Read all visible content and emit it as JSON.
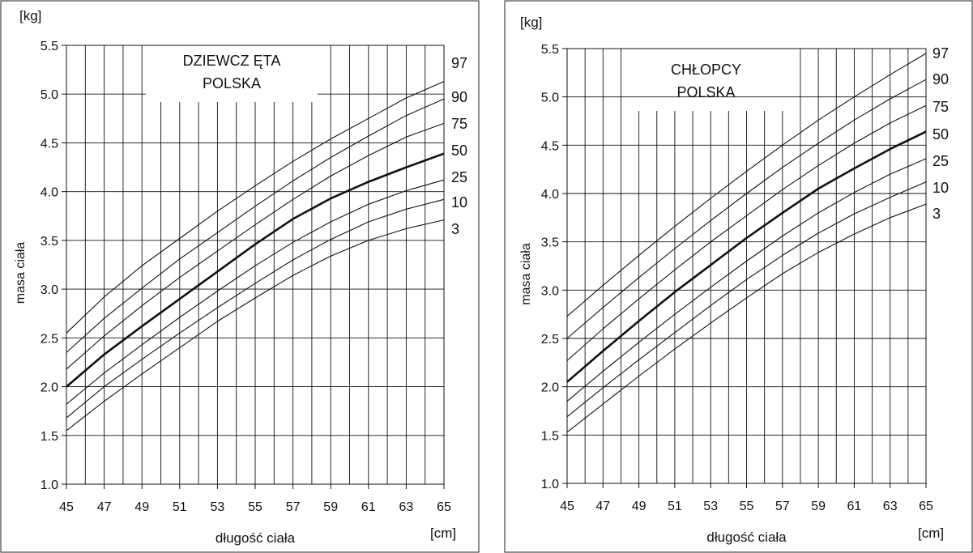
{
  "chart_data": [
    {
      "type": "line",
      "title": "DZIEWCZ ĘTA",
      "subtitle": "POLSKA",
      "xlabel": "długość ciała",
      "ylabel": "masa ciała",
      "x_unit": "[cm]",
      "y_unit": "[kg]",
      "xlim": [
        45,
        65
      ],
      "ylim": [
        1.0,
        5.5
      ],
      "xticks": [
        "45",
        "47",
        "49",
        "51",
        "53",
        "55",
        "57",
        "59",
        "61",
        "63",
        "65"
      ],
      "yticks": [
        "1.0",
        "1.5",
        "2.0",
        "2.5",
        "3.0",
        "3.5",
        "4.0",
        "4.5",
        "5.0",
        "5.5"
      ],
      "grid": true,
      "x": [
        45,
        47,
        49,
        51,
        53,
        55,
        57,
        59,
        61,
        63,
        65
      ],
      "series": [
        {
          "name": "97",
          "values": [
            2.55,
            2.92,
            3.24,
            3.52,
            3.8,
            4.06,
            4.31,
            4.54,
            4.75,
            4.96,
            5.13
          ]
        },
        {
          "name": "90",
          "values": [
            2.35,
            2.7,
            3.01,
            3.31,
            3.58,
            3.85,
            4.11,
            4.35,
            4.57,
            4.78,
            4.95
          ]
        },
        {
          "name": "75",
          "values": [
            2.18,
            2.52,
            2.83,
            3.12,
            3.39,
            3.66,
            3.92,
            4.16,
            4.37,
            4.56,
            4.7
          ]
        },
        {
          "name": "50",
          "values": [
            2.0,
            2.33,
            2.62,
            2.9,
            3.18,
            3.46,
            3.72,
            3.93,
            4.1,
            4.25,
            4.39
          ]
        },
        {
          "name": "25",
          "values": [
            1.82,
            2.14,
            2.43,
            2.71,
            2.98,
            3.24,
            3.48,
            3.69,
            3.87,
            4.01,
            4.12
          ]
        },
        {
          "name": "10",
          "values": [
            1.68,
            2.0,
            2.28,
            2.55,
            2.81,
            3.06,
            3.3,
            3.51,
            3.69,
            3.82,
            3.92
          ]
        },
        {
          "name": "3",
          "values": [
            1.55,
            1.85,
            2.13,
            2.4,
            2.67,
            2.91,
            3.14,
            3.34,
            3.5,
            3.62,
            3.71
          ]
        }
      ]
    },
    {
      "type": "line",
      "title": "CHŁOPCY",
      "subtitle": "POLSKA",
      "xlabel": "długość ciała",
      "ylabel": "masa ciała",
      "x_unit": "[cm]",
      "y_unit": "[kg]",
      "xlim": [
        45,
        65
      ],
      "ylim": [
        1.0,
        5.5
      ],
      "xticks": [
        "45",
        "47",
        "49",
        "51",
        "53",
        "55",
        "57",
        "59",
        "61",
        "63",
        "65"
      ],
      "yticks": [
        "1.0",
        "1.5",
        "2.0",
        "2.5",
        "3.0",
        "3.5",
        "4.0",
        "4.5",
        "5.0",
        "5.5"
      ],
      "grid": true,
      "x": [
        45,
        47,
        49,
        51,
        53,
        55,
        57,
        59,
        61,
        63,
        65
      ],
      "series": [
        {
          "name": "97",
          "values": [
            2.73,
            3.05,
            3.36,
            3.66,
            3.95,
            4.23,
            4.5,
            4.76,
            5.0,
            5.23,
            5.45
          ]
        },
        {
          "name": "90",
          "values": [
            2.5,
            2.82,
            3.13,
            3.43,
            3.72,
            4.0,
            4.27,
            4.52,
            4.76,
            4.98,
            5.18
          ]
        },
        {
          "name": "75",
          "values": [
            2.27,
            2.6,
            2.91,
            3.21,
            3.5,
            3.77,
            4.04,
            4.29,
            4.52,
            4.73,
            4.91
          ]
        },
        {
          "name": "50",
          "values": [
            2.05,
            2.37,
            2.68,
            2.98,
            3.26,
            3.54,
            3.8,
            4.05,
            4.26,
            4.46,
            4.64
          ]
        },
        {
          "name": "25",
          "values": [
            1.85,
            2.16,
            2.46,
            2.75,
            3.03,
            3.3,
            3.56,
            3.8,
            4.01,
            4.2,
            4.36
          ]
        },
        {
          "name": "10",
          "values": [
            1.69,
            1.99,
            2.28,
            2.56,
            2.84,
            3.11,
            3.36,
            3.59,
            3.79,
            3.96,
            4.12
          ]
        },
        {
          "name": "3",
          "values": [
            1.53,
            1.82,
            2.11,
            2.39,
            2.66,
            2.92,
            3.17,
            3.39,
            3.58,
            3.75,
            3.89
          ]
        }
      ]
    }
  ]
}
